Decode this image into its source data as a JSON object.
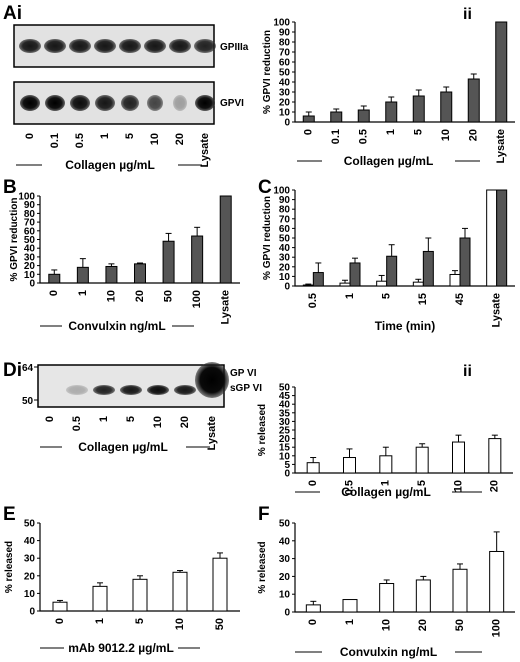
{
  "panel_labels": {
    "Ai": "Ai",
    "Aii": "ii",
    "B": "B",
    "C": "C",
    "Di": "Di",
    "Dii": "ii",
    "E": "E",
    "F": "F"
  },
  "blots": {
    "Ai": {
      "band_labels": [
        "GPIIIa",
        "GPVI"
      ],
      "lanes": [
        "0",
        "0.1",
        "0.5",
        "1",
        "5",
        "10",
        "20",
        "Lysate"
      ],
      "xlabel": "Collagen µg/mL"
    },
    "Di": {
      "band_labels": [
        "GP VI",
        "sGP VI"
      ],
      "mw_markers": [
        "64",
        "50"
      ],
      "lanes": [
        "0",
        "0.5",
        "1",
        "5",
        "10",
        "20",
        "Lysate"
      ],
      "xlabel": "Collagen µg/mL"
    }
  },
  "chart_data": [
    {
      "id": "Aii",
      "type": "bar",
      "categories": [
        "0",
        "0.1",
        "0.5",
        "1",
        "5",
        "10",
        "20",
        "Lysate"
      ],
      "series": [
        {
          "values": [
            6,
            10,
            12,
            20,
            26,
            30,
            43,
            100
          ],
          "errors": [
            4,
            3,
            4,
            5,
            6,
            5,
            5,
            0
          ],
          "color": "#555555"
        }
      ],
      "xlabel": "Collagen µg/mL",
      "ylabel": "% GPVI reduction",
      "ylim": [
        0,
        100
      ],
      "yticks": [
        "0",
        "10",
        "20",
        "30",
        "40",
        "50",
        "60",
        "70",
        "80",
        "90",
        "100"
      ]
    },
    {
      "id": "B",
      "type": "bar",
      "categories": [
        "0",
        "1",
        "10",
        "20",
        "50",
        "100",
        "Lysate"
      ],
      "series": [
        {
          "values": [
            10,
            18,
            19,
            22,
            48,
            54,
            100
          ],
          "errors": [
            5,
            10,
            3,
            1,
            9,
            10,
            0
          ],
          "color": "#555555"
        }
      ],
      "xlabel": "Convulxin ng/mL",
      "ylabel": "% GPVI reduction",
      "ylim": [
        0,
        100
      ],
      "yticks": [
        "0",
        "10",
        "20",
        "30",
        "40",
        "50",
        "60",
        "70",
        "80",
        "90",
        "100"
      ]
    },
    {
      "id": "C",
      "type": "bar",
      "categories": [
        "0.5",
        "1",
        "5",
        "15",
        "45",
        "Lysate"
      ],
      "series": [
        {
          "values": [
            1,
            3,
            5,
            4,
            12,
            100
          ],
          "errors": [
            1,
            3,
            6,
            3,
            4,
            0
          ],
          "color": "#ffffff"
        },
        {
          "values": [
            14,
            24,
            31,
            36,
            50,
            100
          ],
          "errors": [
            10,
            5,
            12,
            14,
            10,
            0
          ],
          "color": "#555555"
        }
      ],
      "xlabel": "Time (min)",
      "ylabel": "% GPVI reduction",
      "ylim": [
        0,
        100
      ],
      "yticks": [
        "0",
        "10",
        "20",
        "30",
        "40",
        "50",
        "60",
        "70",
        "80",
        "90",
        "100"
      ]
    },
    {
      "id": "Dii",
      "type": "bar",
      "categories": [
        "0",
        "0.5",
        "1",
        "5",
        "10",
        "20"
      ],
      "series": [
        {
          "values": [
            6,
            9,
            10,
            15,
            18,
            20
          ],
          "errors": [
            3,
            5,
            5,
            2,
            4,
            2
          ],
          "color": "#ffffff"
        }
      ],
      "xlabel": "Collagen µg/mL",
      "ylabel": "% released",
      "ylim": [
        0,
        50
      ],
      "yticks": [
        "0",
        "5",
        "10",
        "15",
        "20",
        "25",
        "30",
        "35",
        "40",
        "45",
        "50"
      ]
    },
    {
      "id": "E",
      "type": "bar",
      "categories": [
        "0",
        "1",
        "5",
        "10",
        "50"
      ],
      "series": [
        {
          "values": [
            5,
            14,
            18,
            22,
            30
          ],
          "errors": [
            1,
            2,
            2,
            1,
            3
          ],
          "color": "#ffffff"
        }
      ],
      "xlabel": "mAb 9012.2 µg/mL",
      "ylabel": "% released",
      "ylim": [
        0,
        50
      ],
      "yticks": [
        "0",
        "10",
        "20",
        "30",
        "40",
        "50"
      ]
    },
    {
      "id": "F",
      "type": "bar",
      "categories": [
        "0",
        "1",
        "10",
        "20",
        "50",
        "100"
      ],
      "series": [
        {
          "values": [
            4,
            7,
            16,
            18,
            24,
            34
          ],
          "errors": [
            2,
            0,
            2,
            2,
            3,
            11
          ],
          "color": "#ffffff"
        }
      ],
      "xlabel": "Convulxin ng/mL",
      "ylabel": "% released",
      "ylim": [
        0,
        50
      ],
      "yticks": [
        "0",
        "10",
        "20",
        "30",
        "40",
        "50"
      ]
    }
  ]
}
